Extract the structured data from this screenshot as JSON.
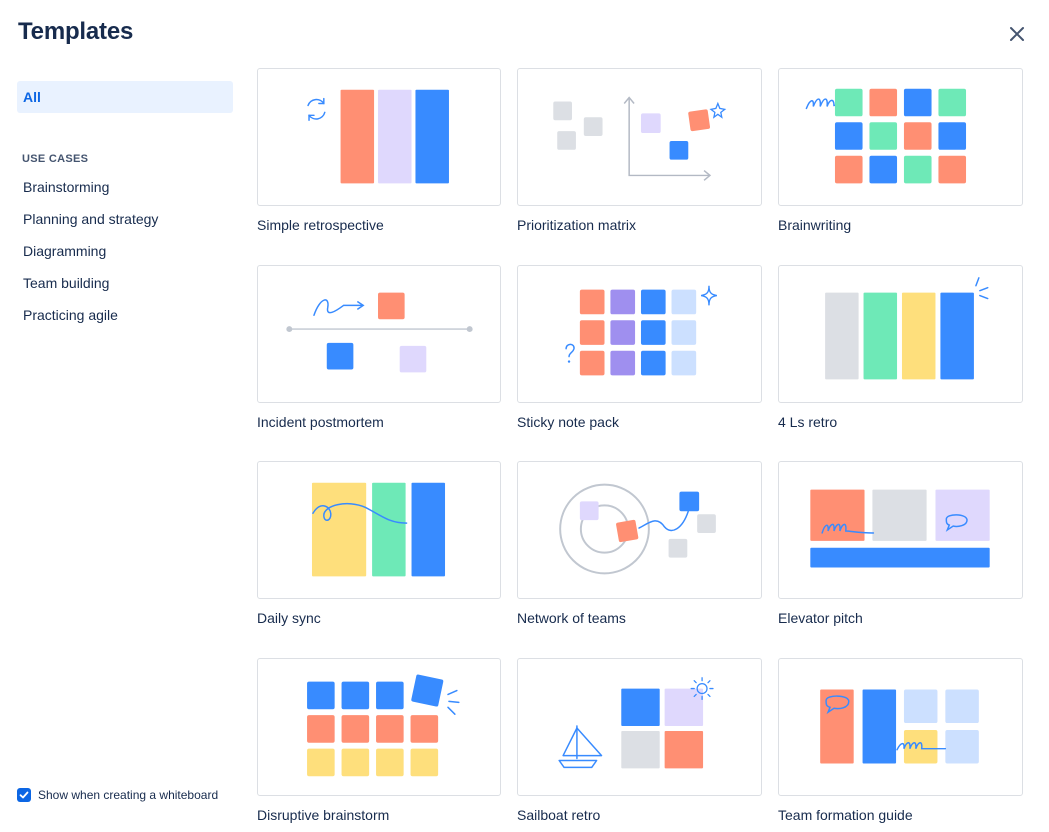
{
  "header": {
    "title": "Templates",
    "close_icon": "close-icon"
  },
  "sidebar": {
    "all_label": "All",
    "section_heading": "USE CASES",
    "categories": [
      "Brainstorming",
      "Planning and strategy",
      "Diagramming",
      "Team building",
      "Practicing agile"
    ]
  },
  "footer": {
    "show_when_label": "Show when creating a whiteboard",
    "show_when_checked": true
  },
  "templates": [
    "Simple retrospective",
    "Prioritization matrix",
    "Brainwriting",
    "Incident postmortem",
    "Sticky note pack",
    "4 Ls retro",
    "Daily sync",
    "Network of teams",
    "Elevator pitch",
    "Disruptive brainstorm",
    "Sailboat retro",
    "Team formation guide"
  ],
  "colors": {
    "coral": "#ff8f73",
    "lavender": "#dfd8fd",
    "blue": "#388bff",
    "mint": "#6ee9b7",
    "yellow": "#fedf7c",
    "gray": "#dcdfe4",
    "purple": "#9f8fef",
    "lightblue": "#cce0ff",
    "selected_bg": "#e9f2ff",
    "selected_text": "#0c66e4"
  }
}
